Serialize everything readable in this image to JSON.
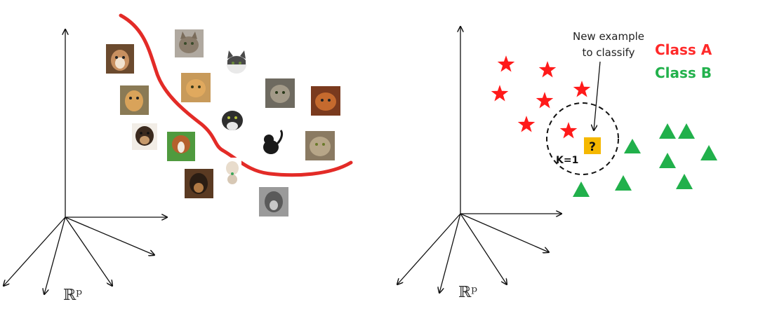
{
  "left_panel": {
    "space_label": "ℝᵖ",
    "dogs": [
      "dog-1",
      "dog-2",
      "dog-3",
      "dog-4",
      "dog-5",
      "dog-6",
      "dog-7"
    ],
    "cats": [
      "cat-1",
      "cat-2",
      "cat-3",
      "cat-4",
      "cat-5",
      "cat-6",
      "cat-7",
      "cat-8",
      "cat-9"
    ],
    "boundary_color": "#e32b27"
  },
  "right_panel": {
    "space_label": "ℝᵖ",
    "annotation_line1": "New example",
    "annotation_line2": "to classify",
    "class_a_label": "Class A",
    "class_b_label": "Class B",
    "k_label": "K=1",
    "query_symbol": "?",
    "colors": {
      "class_a": "#ff1a1a",
      "class_b": "#21b04b",
      "query_box": "#f5b800"
    }
  }
}
